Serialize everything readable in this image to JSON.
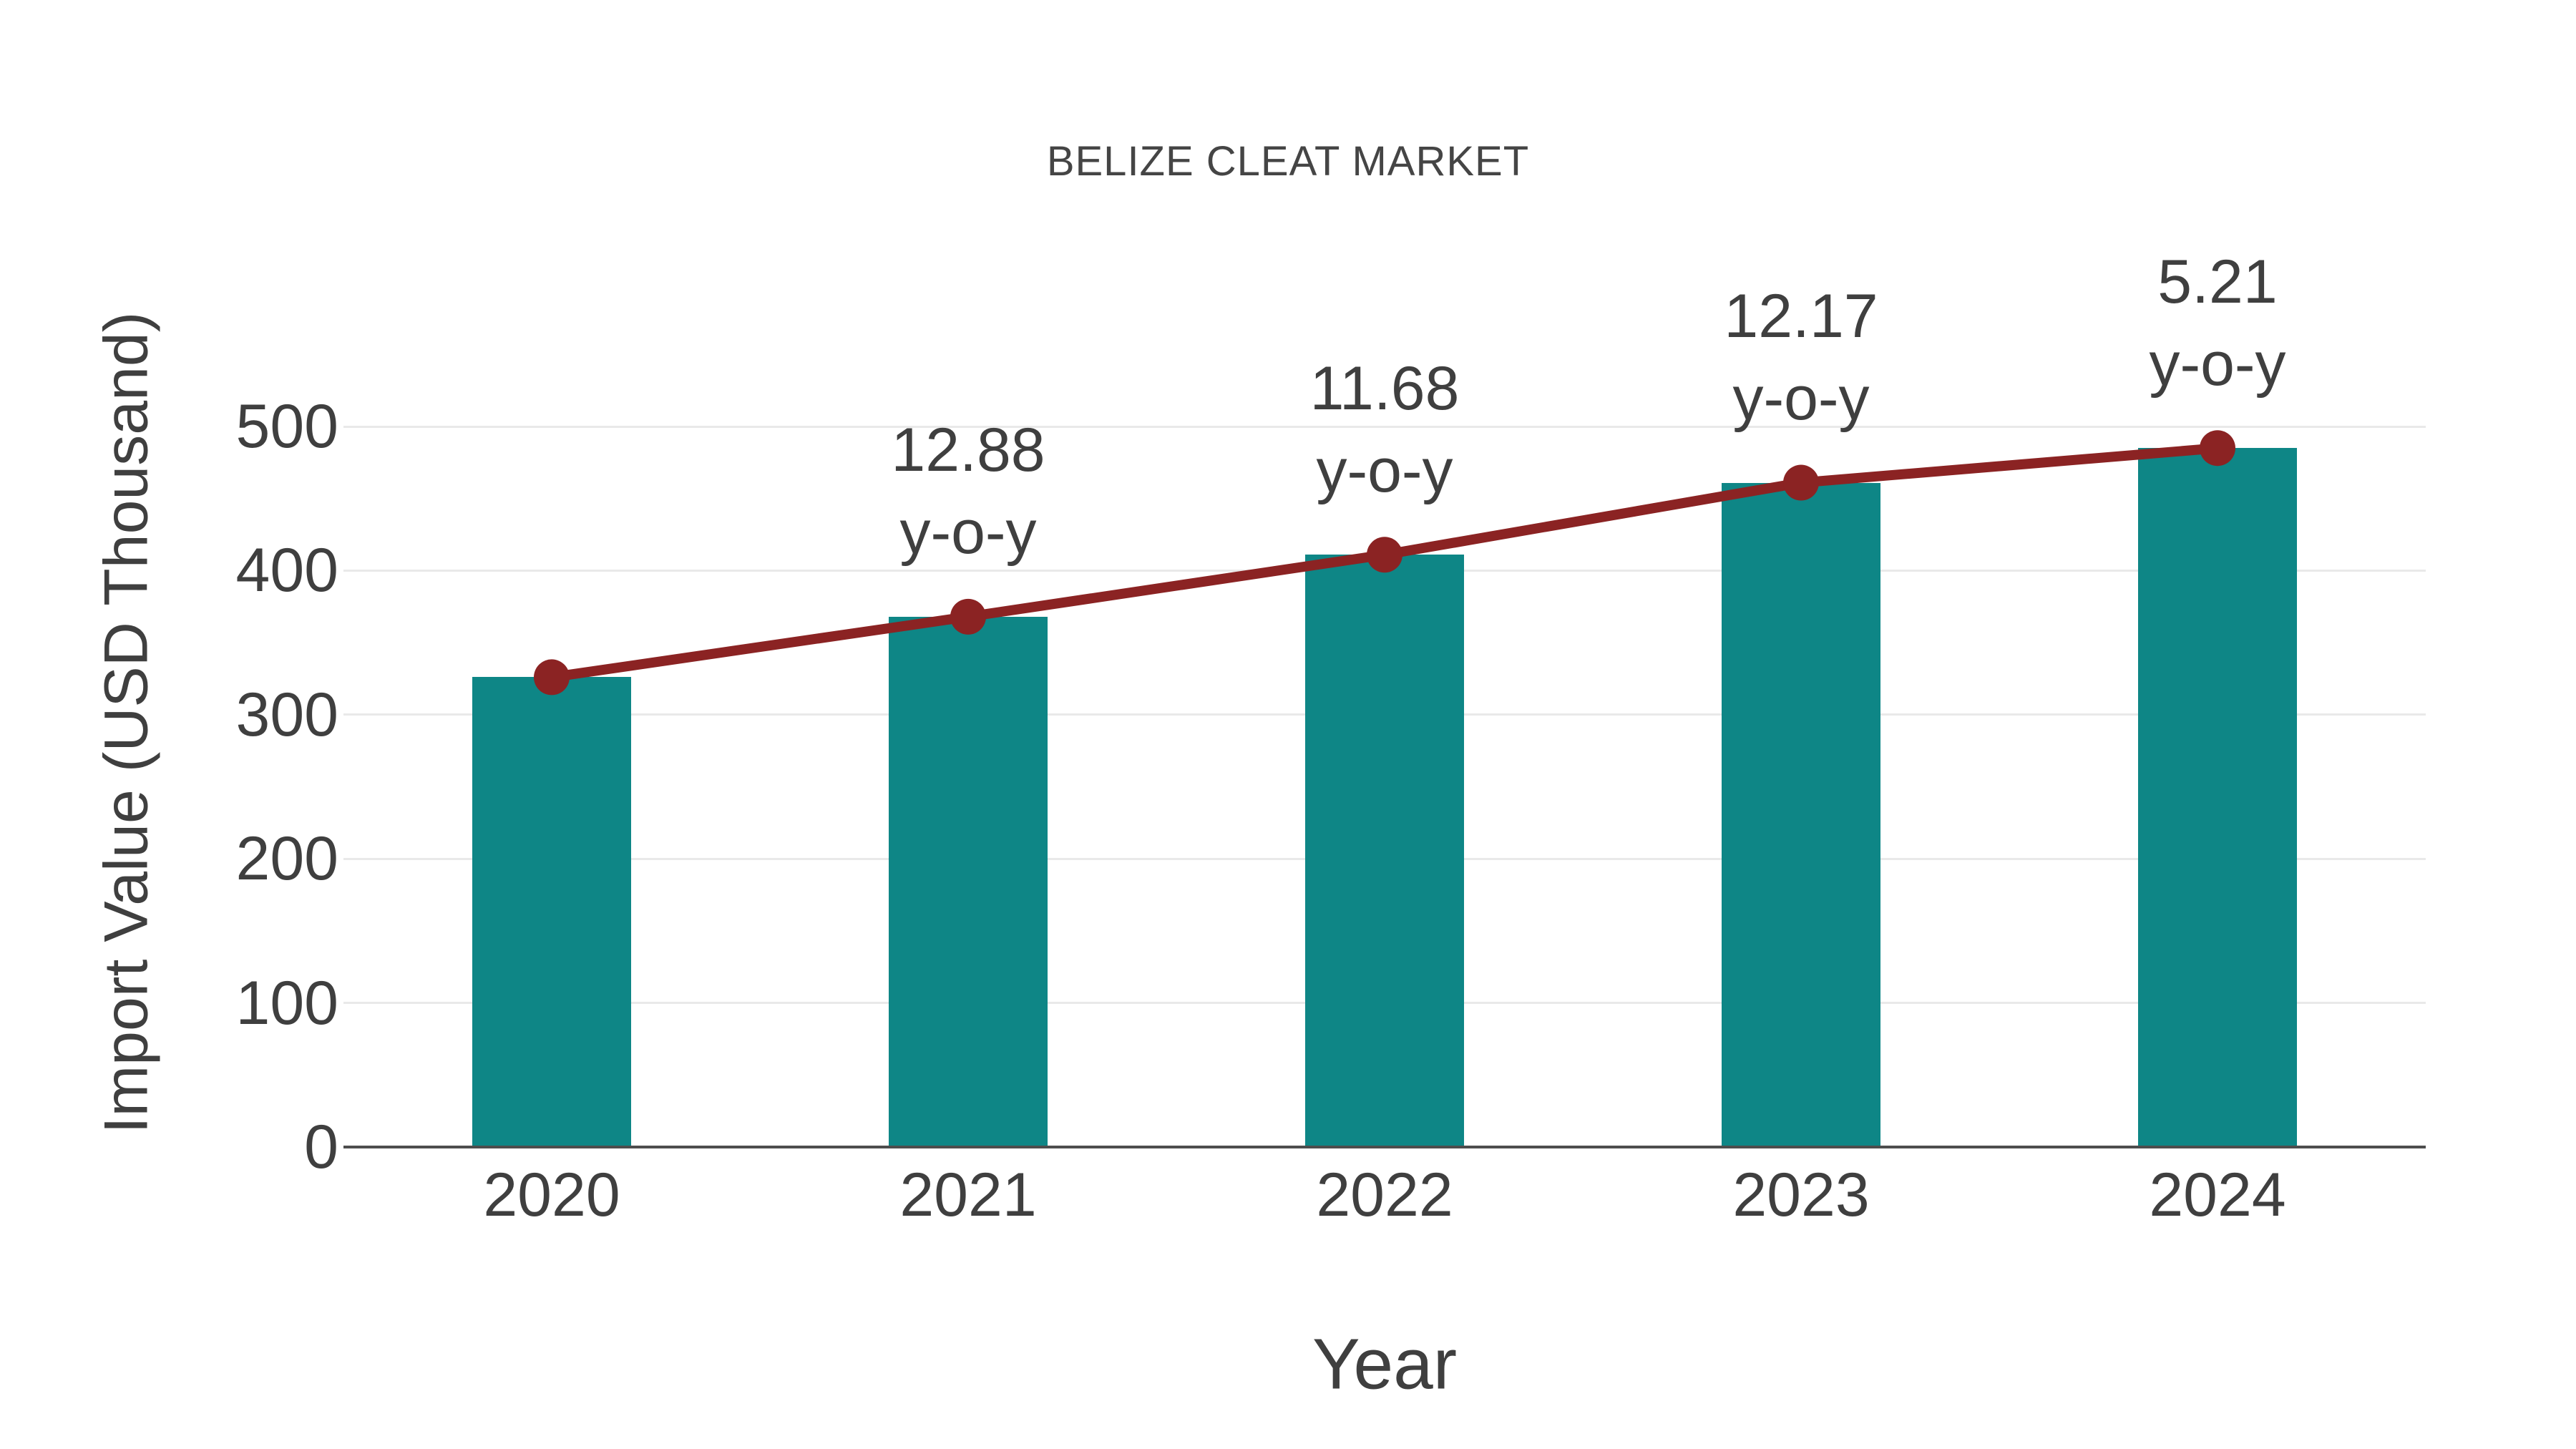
{
  "title": "BELIZE CLEAT MARKET",
  "chart_data": {
    "type": "bar",
    "title": "BELIZE CLEAT MARKET",
    "xlabel": "Year",
    "ylabel": "Import Value (USD Thousand)",
    "categories": [
      "2020",
      "2021",
      "2022",
      "2023",
      "2024"
    ],
    "series": [
      {
        "name": "import-value-bars",
        "type": "bar",
        "values": [
          326,
          368,
          411,
          461,
          485
        ]
      },
      {
        "name": "import-value-trend-line",
        "type": "line",
        "values": [
          326,
          368,
          411,
          461,
          485
        ]
      }
    ],
    "annotations": [
      {
        "category": "2021",
        "value_label": "12.88",
        "suffix_label": "y-o-y"
      },
      {
        "category": "2022",
        "value_label": "11.68",
        "suffix_label": "y-o-y"
      },
      {
        "category": "2023",
        "value_label": "12.17",
        "suffix_label": "y-o-y"
      },
      {
        "category": "2024",
        "value_label": "5.21",
        "suffix_label": "y-o-y"
      }
    ],
    "yticks": [
      0,
      100,
      200,
      300,
      400,
      500
    ],
    "ylim": [
      0,
      500
    ],
    "grid": "horizontal",
    "legend_position": "none",
    "colors": {
      "bar": "#0E8686",
      "line": "#8B2323",
      "marker": "#8B2323",
      "text": "#3F3F3F",
      "grid": "#E9E9E9",
      "axis": "#4D4D4D",
      "background": "#FFFFFF"
    }
  }
}
